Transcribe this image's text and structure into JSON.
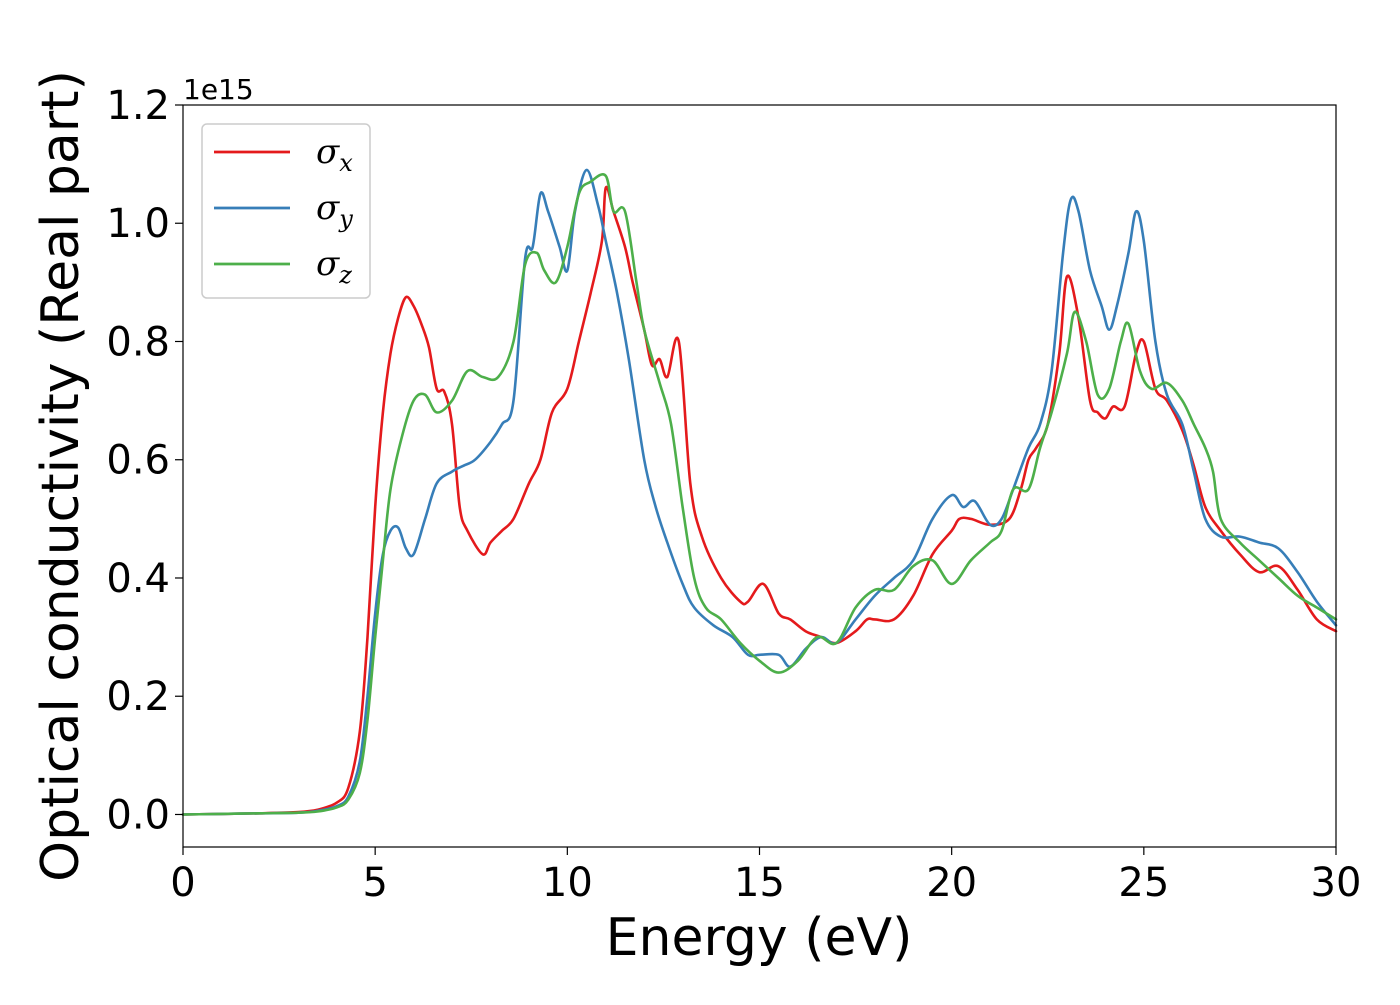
{
  "chart_data": {
    "type": "line",
    "xlabel": "Energy (eV)",
    "ylabel": "Optical conductivity (Real part)",
    "y_offset_text": "1e15",
    "xlim": [
      0,
      30
    ],
    "ylim": [
      -0.055,
      1.2
    ],
    "xticks": [
      0,
      5,
      10,
      15,
      20,
      25,
      30
    ],
    "xtick_labels": [
      "0",
      "5",
      "10",
      "15",
      "20",
      "25",
      "30"
    ],
    "yticks": [
      0.0,
      0.2,
      0.4,
      0.6,
      0.8,
      1.0,
      1.2
    ],
    "ytick_labels": [
      "0.0",
      "0.2",
      "0.4",
      "0.6",
      "0.8",
      "1.0",
      "1.2"
    ],
    "grid": false,
    "legend_position": "top-left",
    "series": [
      {
        "name": "σx",
        "legend_symbol": "σ",
        "legend_subscript": "x",
        "color": "#e41a1c",
        "x": [
          0,
          1,
          2,
          3,
          3.5,
          4,
          4.3,
          4.6,
          4.8,
          5,
          5.2,
          5.4,
          5.6,
          5.8,
          6,
          6.2,
          6.4,
          6.6,
          6.8,
          7,
          7.2,
          7.4,
          7.8,
          8,
          8.3,
          8.6,
          9,
          9.3,
          9.6,
          10,
          10.3,
          10.6,
          10.9,
          11,
          11.2,
          11.5,
          11.7,
          12,
          12.2,
          12.4,
          12.6,
          12.9,
          13.2,
          13.5,
          14,
          14.5,
          14.7,
          15.1,
          15.5,
          15.8,
          16.2,
          16.6,
          17,
          17.5,
          17.8,
          18,
          18.5,
          19,
          19.5,
          20,
          20.2,
          20.5,
          21,
          21.5,
          21.8,
          22,
          22.2,
          22.5,
          22.8,
          23,
          23.3,
          23.6,
          23.8,
          24,
          24.2,
          24.5,
          24.8,
          25,
          25.3,
          25.6,
          26,
          26.3,
          26.6,
          27,
          27.5,
          28,
          28.5,
          29,
          29.5,
          30
        ],
        "y": [
          0.0,
          0.001,
          0.002,
          0.004,
          0.008,
          0.02,
          0.045,
          0.14,
          0.3,
          0.52,
          0.68,
          0.78,
          0.84,
          0.875,
          0.86,
          0.83,
          0.79,
          0.72,
          0.715,
          0.66,
          0.52,
          0.48,
          0.44,
          0.46,
          0.48,
          0.5,
          0.56,
          0.6,
          0.68,
          0.72,
          0.8,
          0.88,
          0.97,
          1.06,
          1.02,
          0.96,
          0.9,
          0.82,
          0.76,
          0.77,
          0.74,
          0.8,
          0.56,
          0.47,
          0.4,
          0.36,
          0.36,
          0.39,
          0.34,
          0.33,
          0.31,
          0.3,
          0.29,
          0.31,
          0.33,
          0.33,
          0.33,
          0.37,
          0.44,
          0.48,
          0.5,
          0.5,
          0.49,
          0.5,
          0.55,
          0.6,
          0.62,
          0.66,
          0.78,
          0.91,
          0.84,
          0.7,
          0.68,
          0.67,
          0.69,
          0.69,
          0.78,
          0.8,
          0.72,
          0.7,
          0.65,
          0.59,
          0.52,
          0.48,
          0.44,
          0.41,
          0.42,
          0.38,
          0.33,
          0.31
        ]
      },
      {
        "name": "σy",
        "legend_symbol": "σ",
        "legend_subscript": "y",
        "color": "#377eb8",
        "x": [
          0,
          1,
          2,
          3,
          3.5,
          4,
          4.3,
          4.6,
          4.8,
          5,
          5.2,
          5.4,
          5.6,
          5.8,
          6,
          6.3,
          6.6,
          7,
          7.3,
          7.6,
          8,
          8.3,
          8.6,
          8.9,
          9.1,
          9.3,
          9.5,
          9.8,
          10,
          10.2,
          10.5,
          10.8,
          11,
          11.3,
          11.6,
          12,
          12.3,
          12.6,
          13,
          13.3,
          13.8,
          14.3,
          14.7,
          15,
          15.5,
          15.8,
          16.2,
          16.6,
          17,
          17.5,
          18,
          18.5,
          19,
          19.5,
          20,
          20.3,
          20.6,
          21,
          21.3,
          21.6,
          22,
          22.3,
          22.6,
          22.9,
          23.1,
          23.3,
          23.6,
          23.9,
          24.1,
          24.3,
          24.6,
          24.8,
          25,
          25.3,
          25.6,
          26,
          26.3,
          26.6,
          27,
          27.5,
          28,
          28.5,
          29,
          29.5,
          30
        ],
        "y": [
          0.0,
          0.001,
          0.002,
          0.003,
          0.006,
          0.014,
          0.03,
          0.09,
          0.2,
          0.34,
          0.44,
          0.48,
          0.485,
          0.45,
          0.44,
          0.5,
          0.56,
          0.58,
          0.59,
          0.6,
          0.63,
          0.66,
          0.7,
          0.94,
          0.96,
          1.05,
          1.02,
          0.96,
          0.92,
          1.02,
          1.09,
          1.03,
          0.97,
          0.88,
          0.77,
          0.6,
          0.52,
          0.46,
          0.39,
          0.35,
          0.32,
          0.3,
          0.27,
          0.27,
          0.27,
          0.25,
          0.28,
          0.3,
          0.29,
          0.33,
          0.37,
          0.4,
          0.43,
          0.5,
          0.54,
          0.52,
          0.53,
          0.49,
          0.5,
          0.55,
          0.62,
          0.66,
          0.75,
          0.95,
          1.04,
          1.02,
          0.92,
          0.86,
          0.82,
          0.86,
          0.95,
          1.02,
          0.97,
          0.8,
          0.71,
          0.66,
          0.58,
          0.5,
          0.47,
          0.47,
          0.46,
          0.45,
          0.41,
          0.36,
          0.32
        ]
      },
      {
        "name": "σz",
        "legend_symbol": "σ",
        "legend_subscript": "z",
        "color": "#4daf4a",
        "x": [
          0,
          1,
          2,
          3,
          3.5,
          4,
          4.3,
          4.6,
          4.8,
          5,
          5.2,
          5.4,
          5.7,
          6,
          6.3,
          6.6,
          7,
          7.4,
          7.8,
          8.2,
          8.6,
          8.9,
          9.2,
          9.4,
          9.7,
          10,
          10.3,
          10.6,
          11,
          11.2,
          11.5,
          11.8,
          12,
          12.4,
          12.7,
          13,
          13.3,
          13.6,
          14,
          14.5,
          15,
          15.5,
          16,
          16.5,
          17,
          17.5,
          18,
          18.5,
          19,
          19.5,
          20,
          20.5,
          21,
          21.3,
          21.6,
          22,
          22.3,
          22.6,
          23,
          23.2,
          23.5,
          23.8,
          24.1,
          24.4,
          24.6,
          24.9,
          25.2,
          25.6,
          26,
          26.3,
          26.6,
          26.8,
          27,
          27.5,
          28,
          28.5,
          29,
          29.5,
          30
        ],
        "y": [
          0.0,
          0.001,
          0.002,
          0.003,
          0.005,
          0.012,
          0.025,
          0.07,
          0.16,
          0.3,
          0.43,
          0.55,
          0.64,
          0.7,
          0.71,
          0.68,
          0.7,
          0.75,
          0.74,
          0.74,
          0.8,
          0.93,
          0.95,
          0.92,
          0.9,
          0.96,
          1.05,
          1.07,
          1.08,
          1.02,
          1.02,
          0.9,
          0.82,
          0.73,
          0.66,
          0.52,
          0.4,
          0.35,
          0.33,
          0.29,
          0.26,
          0.24,
          0.26,
          0.3,
          0.29,
          0.35,
          0.38,
          0.38,
          0.42,
          0.43,
          0.39,
          0.43,
          0.46,
          0.48,
          0.55,
          0.55,
          0.62,
          0.68,
          0.78,
          0.85,
          0.8,
          0.71,
          0.72,
          0.8,
          0.83,
          0.75,
          0.72,
          0.73,
          0.7,
          0.66,
          0.62,
          0.58,
          0.5,
          0.46,
          0.43,
          0.4,
          0.37,
          0.35,
          0.33
        ]
      }
    ]
  }
}
